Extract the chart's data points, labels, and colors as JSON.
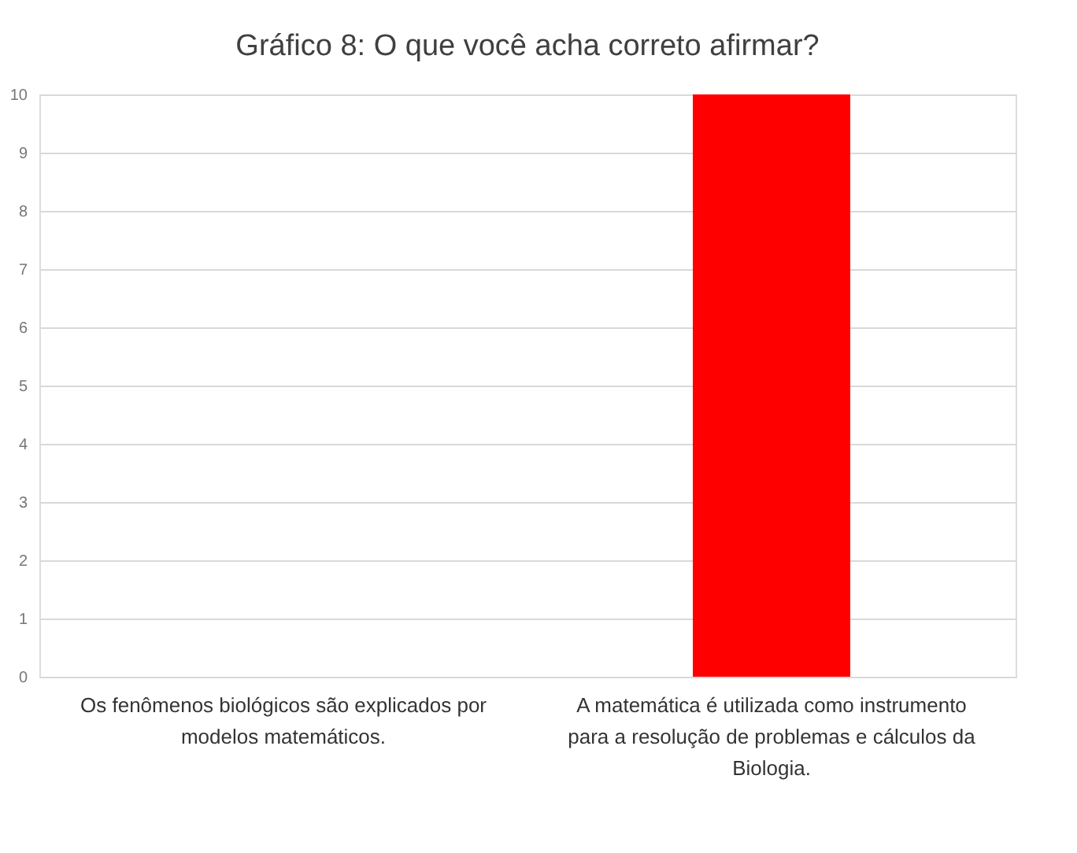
{
  "chart_data": {
    "type": "bar",
    "title": "Gráfico 8: O que você acha correto afirmar?",
    "categories": [
      "Os fenômenos biológicos são explicados por modelos matemáticos.",
      "A matemática é utilizada como instrumento para a resolução de problemas e cálculos da Biologia."
    ],
    "values": [
      0,
      10
    ],
    "colors": [
      "#ff0000",
      "#ff0000"
    ],
    "ylim": [
      0,
      10
    ],
    "yticks": [
      0,
      1,
      2,
      3,
      4,
      5,
      6,
      7,
      8,
      9,
      10
    ],
    "grid": "y"
  }
}
